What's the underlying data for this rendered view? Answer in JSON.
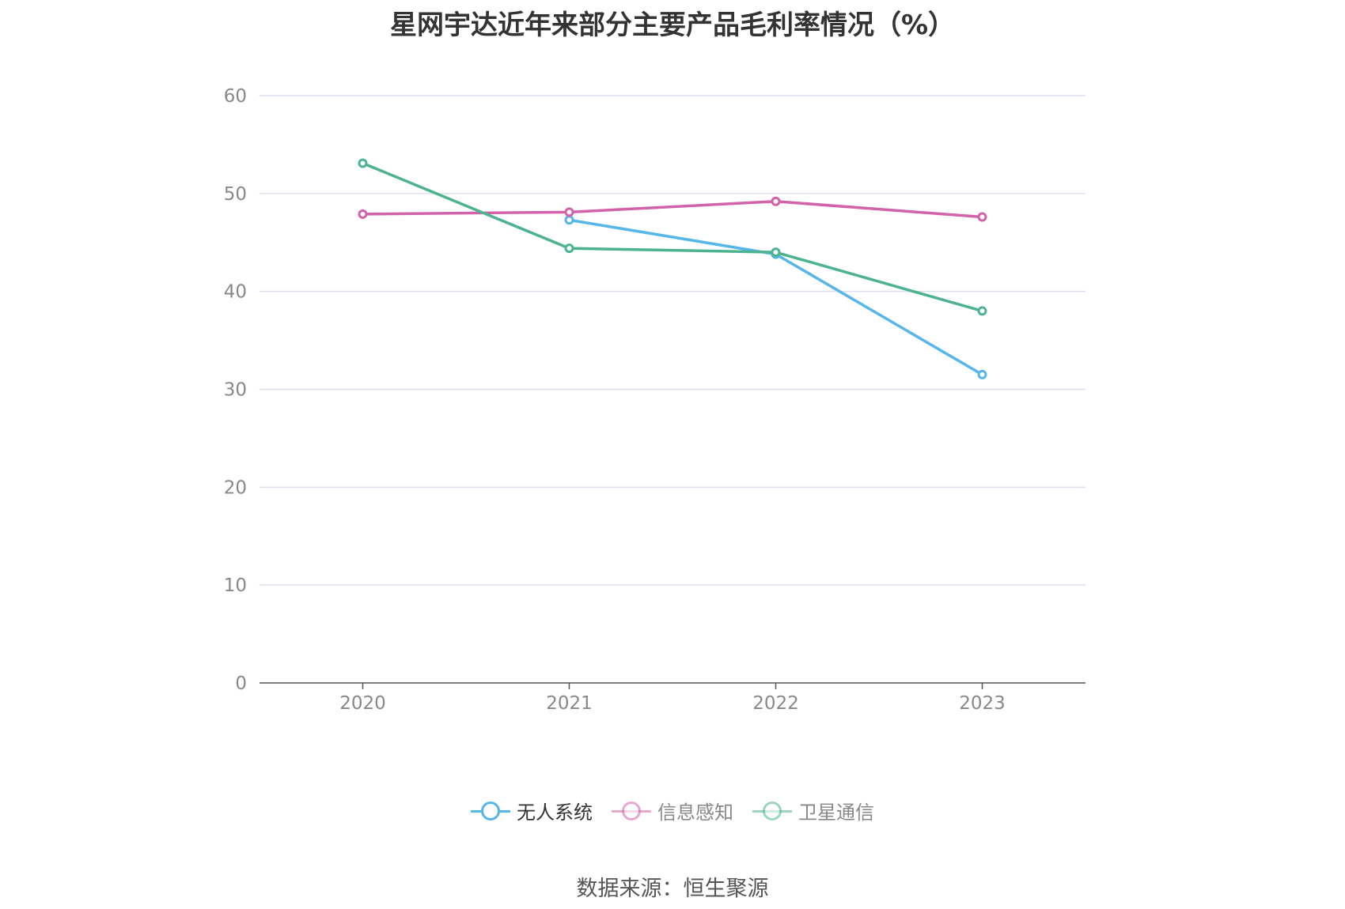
{
  "chart_data": {
    "type": "line",
    "title": "星网宇达近年来部分主要产品毛利率情况（%）",
    "categories": [
      "2020",
      "2021",
      "2022",
      "2023"
    ],
    "ylim": [
      0,
      60
    ],
    "yticks": [
      0,
      10,
      20,
      30,
      40,
      50,
      60
    ],
    "grid": true,
    "legend_position": "bottom",
    "series": [
      {
        "name": "无人系统",
        "color": "#56b6ec",
        "values": [
          null,
          47.3,
          43.8,
          31.5
        ]
      },
      {
        "name": "信息感知",
        "color": "#d262aa",
        "values": [
          47.9,
          48.1,
          49.2,
          47.6
        ]
      },
      {
        "name": "卫星通信",
        "color": "#4cb38f",
        "values": [
          53.1,
          44.4,
          44.0,
          38.0
        ]
      }
    ],
    "source": "数据来源：恒生聚源"
  }
}
